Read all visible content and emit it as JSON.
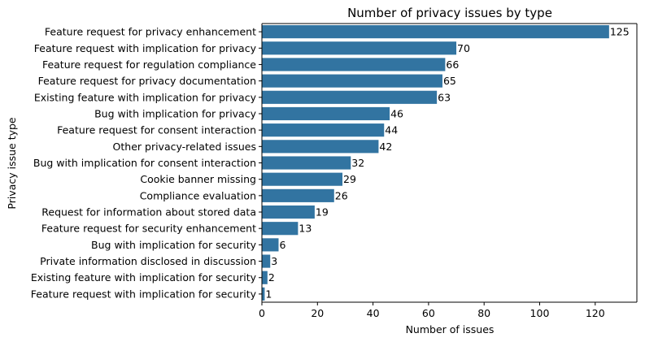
{
  "chart_data": {
    "type": "bar",
    "orientation": "horizontal",
    "title": "Number of privacy issues by type",
    "xlabel": "Number of issues",
    "ylabel": "Privacy issue type",
    "xlim": [
      0,
      135
    ],
    "xticks": [
      0,
      20,
      40,
      60,
      80,
      100,
      120
    ],
    "grid": false,
    "bar_color": "#3274a1",
    "categories": [
      "Feature request for privacy enhancement",
      "Feature request with implication for privacy",
      "Feature request for regulation compliance",
      "Feature request for privacy documentation",
      "Existing feature with implication for privacy",
      "Bug with implication for privacy",
      "Feature request for consent interaction",
      "Other privacy-related issues",
      "Bug with implication for consent interaction",
      "Cookie banner missing",
      "Compliance evaluation",
      "Request for information about stored data",
      "Feature request for security enhancement",
      "Bug with implication for security",
      "Private information disclosed in discussion",
      "Existing feature with implication for security",
      "Feature request with implication for security"
    ],
    "values": [
      125,
      70,
      66,
      65,
      63,
      46,
      44,
      42,
      32,
      29,
      26,
      19,
      13,
      6,
      3,
      2,
      1
    ]
  }
}
